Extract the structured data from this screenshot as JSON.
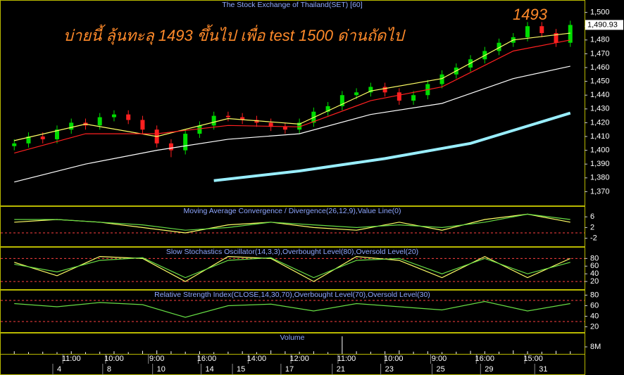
{
  "chart_data": [
    {
      "type": "candlestick",
      "title": "The Stock Exchange of Thailand(SET) [60]",
      "annotation": "บ่ายนี้ ลุ้นทะลุ 1493 ขึ้นไป เพื่อ test 1500 ด่านถัดไป",
      "annotation_2": "1493",
      "last": {
        "value": 1490.93,
        "label": "1,490.93"
      },
      "xlim": [
        -1,
        40
      ],
      "ylim": [
        1360,
        1509
      ],
      "yticks": [
        {
          "value": 1370,
          "label": "1,370"
        },
        {
          "value": 1380,
          "label": "1,380"
        },
        {
          "value": 1390,
          "label": "1,390"
        },
        {
          "value": 1400,
          "label": "1,400"
        },
        {
          "value": 1410,
          "label": "1,410"
        },
        {
          "value": 1420,
          "label": "1,420"
        },
        {
          "value": 1430,
          "label": "1,430"
        },
        {
          "value": 1440,
          "label": "1,440"
        },
        {
          "value": 1450,
          "label": "1,450"
        },
        {
          "value": 1460,
          "label": "1,460"
        },
        {
          "value": 1470,
          "label": "1,470"
        },
        {
          "value": 1480,
          "label": "1,480"
        },
        {
          "value": 1490,
          "label": "1,490"
        },
        {
          "value": 1500,
          "label": "1,500"
        }
      ],
      "up_color": "#00dd00",
      "down_color": "#ff2020",
      "x": [
        0,
        1,
        2,
        3,
        4,
        5,
        6,
        7,
        8,
        9,
        10,
        11,
        12,
        13,
        14,
        15,
        16,
        17,
        18,
        19,
        20,
        21,
        22,
        23,
        24,
        25,
        26,
        27,
        28,
        29,
        30,
        31,
        32,
        33,
        34,
        35,
        36,
        37,
        38,
        39
      ],
      "open": [
        1403,
        1405,
        1410,
        1408,
        1415,
        1420,
        1418,
        1424,
        1426,
        1422,
        1415,
        1405,
        1400,
        1412,
        1418,
        1425,
        1424,
        1422,
        1420,
        1417,
        1415,
        1420,
        1428,
        1432,
        1440,
        1442,
        1446,
        1442,
        1436,
        1440,
        1448,
        1455,
        1460,
        1466,
        1472,
        1478,
        1482,
        1490,
        1485,
        1478
      ],
      "high": [
        1408,
        1413,
        1413,
        1418,
        1423,
        1423,
        1427,
        1429,
        1429,
        1425,
        1418,
        1408,
        1415,
        1421,
        1428,
        1428,
        1427,
        1425,
        1423,
        1420,
        1423,
        1431,
        1435,
        1443,
        1445,
        1449,
        1449,
        1445,
        1443,
        1451,
        1458,
        1463,
        1469,
        1475,
        1481,
        1485,
        1493,
        1493,
        1488,
        1494
      ],
      "low": [
        1400,
        1402,
        1405,
        1405,
        1412,
        1415,
        1415,
        1421,
        1419,
        1412,
        1402,
        1395,
        1397,
        1409,
        1415,
        1421,
        1419,
        1417,
        1414,
        1412,
        1412,
        1417,
        1425,
        1429,
        1437,
        1439,
        1439,
        1433,
        1433,
        1437,
        1445,
        1452,
        1457,
        1463,
        1469,
        1475,
        1479,
        1482,
        1475,
        1475
      ],
      "close": [
        1405,
        1410,
        1408,
        1415,
        1420,
        1418,
        1424,
        1426,
        1422,
        1415,
        1405,
        1400,
        1412,
        1418,
        1425,
        1424,
        1422,
        1420,
        1417,
        1415,
        1420,
        1428,
        1432,
        1440,
        1442,
        1446,
        1442,
        1436,
        1440,
        1448,
        1455,
        1460,
        1466,
        1472,
        1478,
        1482,
        1490,
        1485,
        1478,
        1490.93
      ],
      "series": [
        {
          "color": "#ffff66",
          "x": [
            0,
            5,
            10,
            15,
            20,
            25,
            30,
            35,
            39
          ],
          "values": [
            1407,
            1419,
            1410,
            1423,
            1419,
            1443,
            1452,
            1480,
            1485
          ]
        },
        {
          "color": "#ff2020",
          "x": [
            0,
            5,
            10,
            15,
            20,
            25,
            30,
            35,
            39
          ],
          "values": [
            1398,
            1412,
            1412,
            1418,
            1417,
            1436,
            1446,
            1472,
            1480
          ]
        },
        {
          "color": "#ffffff",
          "x": [
            0,
            5,
            10,
            15,
            20,
            25,
            30,
            35,
            39
          ],
          "values": [
            1377,
            1390,
            1400,
            1408,
            1412,
            1426,
            1434,
            1452,
            1461
          ]
        },
        {
          "color": "#99eeff",
          "width": 4,
          "x": [
            14,
            20,
            26,
            32,
            39
          ],
          "values": [
            1378,
            1385,
            1394,
            1405,
            1427
          ]
        }
      ]
    },
    {
      "type": "line",
      "title": "Moving Average Convergence / Divergence(26,12,9),Value Line(0)",
      "xlim": [
        -1,
        40
      ],
      "ylim": [
        -5,
        10
      ],
      "yticks": [
        6,
        2,
        -2
      ],
      "levels": [
        0
      ],
      "level_color": "#ff4040",
      "series": [
        {
          "color": "#ffff66",
          "x": [
            0,
            3,
            6,
            9,
            12,
            15,
            18,
            21,
            24,
            27,
            30,
            33,
            36,
            39
          ],
          "values": [
            4,
            5,
            4,
            2,
            0,
            3,
            4,
            2,
            1,
            4,
            1,
            5,
            7,
            4
          ]
        },
        {
          "color": "#66dd44",
          "x": [
            0,
            3,
            6,
            9,
            12,
            15,
            18,
            21,
            24,
            27,
            30,
            33,
            36,
            39
          ],
          "values": [
            5,
            5,
            4,
            3,
            1,
            2,
            4,
            3,
            2,
            3,
            2,
            4,
            7,
            5
          ]
        }
      ]
    },
    {
      "type": "line",
      "title": "Slow Stochastics Oscillator(14,3,3),Overbought Level(80),Oversold Level(20)",
      "xlim": [
        -1,
        40
      ],
      "ylim": [
        0,
        110
      ],
      "yticks": [
        80,
        60,
        40,
        20
      ],
      "levels": [
        80,
        20
      ],
      "level_color": "#ff4040",
      "series": [
        {
          "color": "#ffff66",
          "x": [
            0,
            3,
            6,
            9,
            12,
            15,
            18,
            21,
            24,
            27,
            30,
            33,
            36,
            39
          ],
          "values": [
            70,
            35,
            85,
            80,
            20,
            85,
            80,
            20,
            85,
            75,
            30,
            85,
            30,
            80
          ]
        },
        {
          "color": "#66dd44",
          "x": [
            0,
            3,
            6,
            9,
            12,
            15,
            18,
            21,
            24,
            27,
            30,
            33,
            36,
            39
          ],
          "values": [
            65,
            45,
            75,
            82,
            30,
            75,
            82,
            30,
            75,
            80,
            40,
            80,
            40,
            70
          ]
        }
      ]
    },
    {
      "type": "line",
      "title": "Relative Strength Index(CLOSE,14,30,70),Overbought Level(70),Oversold Level(30)",
      "xlim": [
        -1,
        40
      ],
      "ylim": [
        10,
        90
      ],
      "yticks": [
        80,
        60,
        40,
        20
      ],
      "levels": [
        70,
        30
      ],
      "level_color": "#ff4040",
      "series": [
        {
          "color": "#66dd44",
          "x": [
            0,
            3,
            6,
            9,
            12,
            15,
            18,
            21,
            24,
            27,
            30,
            33,
            36,
            39
          ],
          "values": [
            64,
            58,
            66,
            62,
            38,
            60,
            63,
            50,
            64,
            58,
            52,
            68,
            50,
            64
          ]
        }
      ]
    },
    {
      "type": "bar",
      "title": "Volume",
      "color": "#ffffff",
      "xlim": [
        -1,
        40
      ],
      "ylim": [
        0,
        24000000
      ],
      "yticks": [
        {
          "value": 8000000,
          "label": "8M"
        }
      ],
      "x": [
        0,
        1,
        2,
        3,
        4,
        5,
        6,
        7,
        8,
        9,
        10,
        11,
        12,
        13,
        14,
        15,
        16,
        17,
        18,
        19,
        20,
        21,
        22,
        23,
        24,
        25,
        26,
        27,
        28,
        29,
        30,
        31,
        32,
        33,
        34,
        35,
        36,
        37,
        38,
        39
      ],
      "values": [
        3000000,
        2000000,
        2500000,
        2000000,
        3000000,
        2000000,
        2500000,
        3000000,
        2000000,
        3500000,
        4000000,
        3000000,
        2500000,
        3000000,
        2000000,
        2500000,
        3000000,
        2000000,
        4000000,
        3000000,
        2500000,
        3000000,
        2000000,
        20000000,
        3000000,
        2500000,
        3000000,
        4000000,
        2500000,
        3000000,
        2000000,
        2500000,
        3500000,
        3000000,
        2500000,
        4000000,
        3000000,
        2500000,
        3500000,
        3000000
      ],
      "xticks": [
        {
          "value": 4,
          "label": "11:00"
        },
        {
          "value": 7,
          "label": "10:00"
        },
        {
          "value": 10,
          "label": "9:00"
        },
        {
          "value": 13.5,
          "label": "16:00"
        },
        {
          "value": 17,
          "label": "14:00"
        },
        {
          "value": 20,
          "label": "12:00"
        },
        {
          "value": 23.3,
          "label": "11:00"
        },
        {
          "value": 26.6,
          "label": "10:00"
        },
        {
          "value": 29.8,
          "label": "9:00"
        },
        {
          "value": 33,
          "label": "16:00"
        },
        {
          "value": 36.4,
          "label": "15:00"
        }
      ],
      "date_ticks": [
        {
          "value": 3,
          "label": "4"
        },
        {
          "value": 6.5,
          "label": "8"
        },
        {
          "value": 10,
          "label": "10"
        },
        {
          "value": 13.4,
          "label": "14"
        },
        {
          "value": 15.6,
          "label": "15"
        },
        {
          "value": 19,
          "label": "17"
        },
        {
          "value": 22.6,
          "label": "21"
        },
        {
          "value": 26,
          "label": "23"
        },
        {
          "value": 29.6,
          "label": "25"
        },
        {
          "value": 33,
          "label": "29"
        },
        {
          "value": 36.8,
          "label": "31"
        }
      ]
    }
  ]
}
